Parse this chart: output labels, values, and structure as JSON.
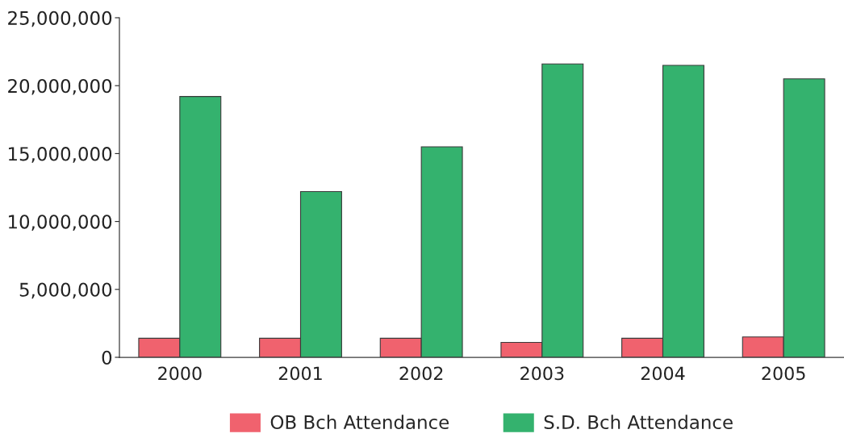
{
  "chart_data": {
    "type": "bar",
    "categories": [
      "2000",
      "2001",
      "2002",
      "2003",
      "2004",
      "2005"
    ],
    "series": [
      {
        "name": "OB Bch Attendance",
        "color": "#f0626e",
        "values": [
          1400000,
          1400000,
          1400000,
          1100000,
          1400000,
          1500000
        ]
      },
      {
        "name": "S.D. Bch Attendance",
        "color": "#34b26e",
        "values": [
          19200000,
          12200000,
          15500000,
          21600000,
          21500000,
          20500000
        ]
      }
    ],
    "ylim": [
      0,
      25000000
    ],
    "yticks": [
      0,
      {
        "value": 5000000,
        "label": "5,000,000"
      },
      {
        "value": 10000000,
        "label": "10,000,000"
      },
      {
        "value": 15000000,
        "label": "15,000,000"
      },
      {
        "value": 20000000,
        "label": "20,000,000"
      },
      {
        "value": 25000000,
        "label": "25,000,000"
      }
    ],
    "grid": false,
    "legend": "bottom"
  }
}
